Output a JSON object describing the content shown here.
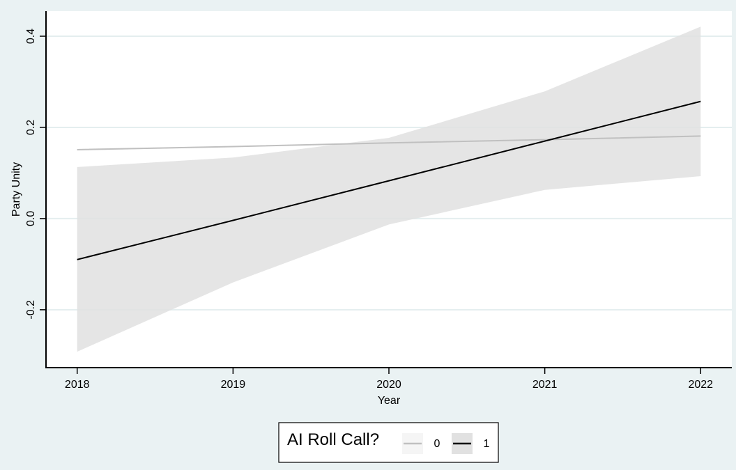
{
  "chart_data": {
    "type": "line",
    "xlabel": "Year",
    "ylabel": "Party Unity",
    "x_ticks": [
      2018,
      2019,
      2020,
      2021,
      2022
    ],
    "y_ticks": [
      -0.2,
      0.0,
      0.2,
      0.4
    ],
    "y_tick_labels": [
      "-0.2",
      "0.0",
      "0.2",
      "0.4"
    ],
    "xlim": [
      2017.8,
      2022.2
    ],
    "ylim": [
      -0.327,
      0.455
    ],
    "grid": true,
    "legend_title": "AI Roll Call?",
    "legend_position": "bottom-center",
    "series": [
      {
        "name": "0",
        "color": "#c0c0c0",
        "band_color": "#f5f5f5",
        "x": [
          2018,
          2019,
          2020,
          2021,
          2022
        ],
        "y": [
          0.151,
          0.158,
          0.166,
          0.173,
          0.181
        ],
        "ci_lower": [
          0.149,
          0.157,
          0.165,
          0.172,
          0.179
        ],
        "ci_upper": [
          0.153,
          0.159,
          0.167,
          0.174,
          0.183
        ]
      },
      {
        "name": "1",
        "color": "#000000",
        "band_color": "#e1e1e1",
        "x": [
          2018,
          2019,
          2020,
          2021,
          2022
        ],
        "y": [
          -0.09,
          -0.004,
          0.083,
          0.17,
          0.257
        ],
        "ci_lower": [
          -0.292,
          -0.14,
          -0.013,
          0.063,
          0.093
        ],
        "ci_upper": [
          0.113,
          0.134,
          0.177,
          0.279,
          0.421
        ]
      }
    ]
  }
}
